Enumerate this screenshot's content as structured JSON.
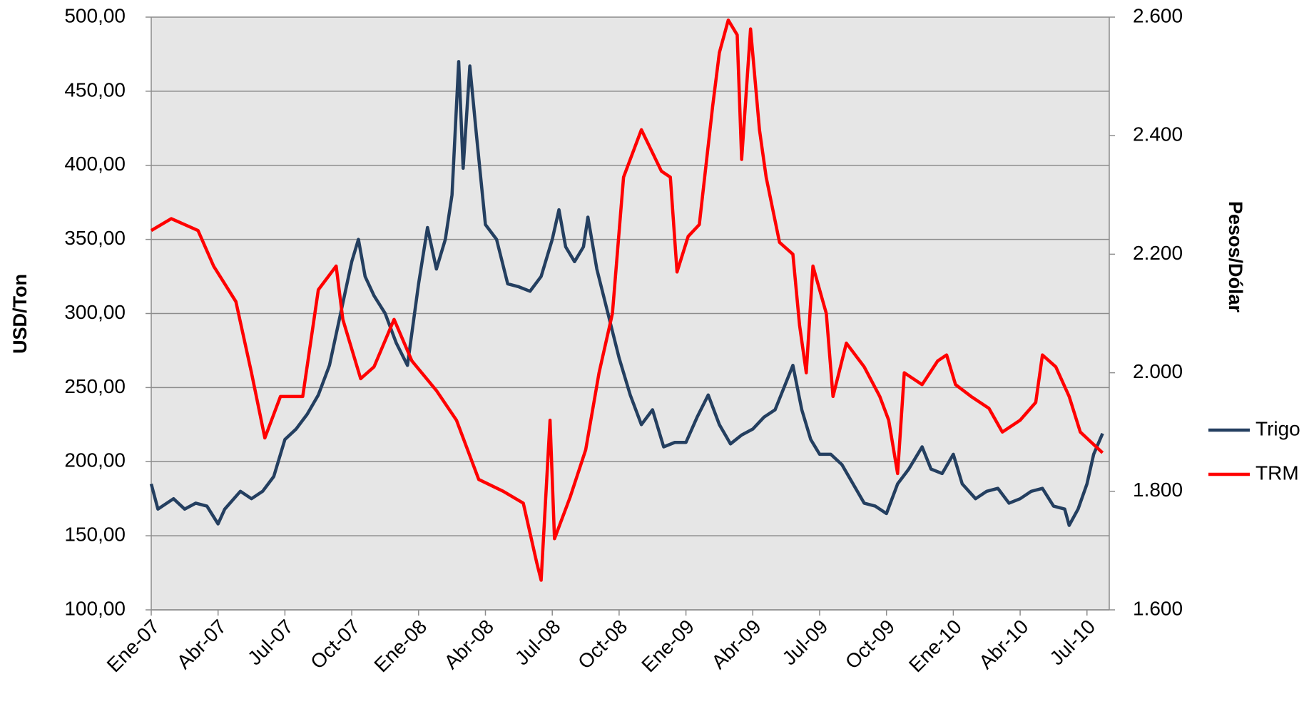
{
  "chart_data": {
    "type": "line",
    "ylabel": "USD/Ton",
    "y2label": "Pesos/Dólar",
    "xlim": [
      0,
      43
    ],
    "xticks": [
      {
        "value": 0,
        "label": "Ene-07"
      },
      {
        "value": 3,
        "label": "Abr-07"
      },
      {
        "value": 6,
        "label": "Jul-07"
      },
      {
        "value": 9,
        "label": "Oct-07"
      },
      {
        "value": 12,
        "label": "Ene-08"
      },
      {
        "value": 15,
        "label": "Abr-08"
      },
      {
        "value": 18,
        "label": "Jul-08"
      },
      {
        "value": 21,
        "label": "Oct-08"
      },
      {
        "value": 24,
        "label": "Ene-09"
      },
      {
        "value": 27,
        "label": "Abr-09"
      },
      {
        "value": 30,
        "label": "Jul-09"
      },
      {
        "value": 33,
        "label": "Oct-09"
      },
      {
        "value": 36,
        "label": "Ene-10"
      },
      {
        "value": 39,
        "label": "Abr-10"
      },
      {
        "value": 42,
        "label": "Jul-10"
      }
    ],
    "ylim": [
      100,
      500
    ],
    "yticks": [
      {
        "value": 100,
        "label": "100,00"
      },
      {
        "value": 150,
        "label": "150,00"
      },
      {
        "value": 200,
        "label": "200,00"
      },
      {
        "value": 250,
        "label": "250,00"
      },
      {
        "value": 300,
        "label": "300,00"
      },
      {
        "value": 350,
        "label": "350,00"
      },
      {
        "value": 400,
        "label": "400,00"
      },
      {
        "value": 450,
        "label": "450,00"
      },
      {
        "value": 500,
        "label": "500,00"
      }
    ],
    "y2lim": [
      1600,
      2600
    ],
    "y2ticks": [
      {
        "value": 1600,
        "label": "1.600"
      },
      {
        "value": 1800,
        "label": "1.800"
      },
      {
        "value": 2000,
        "label": "2.000"
      },
      {
        "value": 2200,
        "label": "2.200"
      },
      {
        "value": 2400,
        "label": "2.400"
      },
      {
        "value": 2600,
        "label": "2.600"
      }
    ],
    "grid": true,
    "legend": "right",
    "series": [
      {
        "name": "Trigo",
        "color": "#243f60",
        "x": [
          0,
          0.3,
          1,
          1.5,
          2,
          2.5,
          3,
          3.3,
          4,
          4.5,
          5,
          5.5,
          6,
          6.5,
          7,
          7.5,
          8,
          8.5,
          9,
          9.3,
          9.6,
          10,
          10.5,
          11,
          11.5,
          12,
          12.4,
          12.8,
          13.2,
          13.5,
          13.8,
          14,
          14.3,
          14.6,
          15,
          15.5,
          16,
          16.5,
          17,
          17.5,
          18,
          18.3,
          18.6,
          19,
          19.4,
          19.6,
          20,
          20.5,
          21,
          21.5,
          22,
          22.5,
          23,
          23.5,
          24,
          24.5,
          25,
          25.5,
          26,
          26.5,
          27,
          27.5,
          28,
          28.8,
          29.2,
          29.6,
          30,
          30.5,
          31,
          31.5,
          32,
          32.5,
          33,
          33.5,
          34,
          34.6,
          35,
          35.5,
          36,
          36.4,
          37,
          37.5,
          38,
          38.5,
          39,
          39.5,
          40,
          40.5,
          41,
          41.2,
          41.6,
          42,
          42.3,
          42.7
        ],
        "values": [
          185,
          168,
          175,
          168,
          172,
          170,
          158,
          168,
          180,
          175,
          180,
          190,
          215,
          222,
          232,
          245,
          265,
          300,
          335,
          350,
          325,
          312,
          300,
          280,
          265,
          320,
          358,
          330,
          350,
          380,
          470,
          398,
          467,
          420,
          360,
          350,
          320,
          318,
          315,
          325,
          350,
          370,
          345,
          335,
          345,
          365,
          330,
          300,
          270,
          245,
          225,
          235,
          210,
          213,
          213,
          230,
          245,
          225,
          212,
          218,
          222,
          230,
          235,
          265,
          235,
          215,
          205,
          205,
          198,
          185,
          172,
          170,
          165,
          185,
          195,
          210,
          195,
          192,
          205,
          185,
          175,
          180,
          182,
          172,
          175,
          180,
          182,
          170,
          168,
          157,
          168,
          185,
          205,
          219
        ]
      },
      {
        "name": "TRM",
        "color": "#ff0000",
        "axis": "y2",
        "x": [
          0,
          0.9,
          2.1,
          2.8,
          3.8,
          4.5,
          5.1,
          5.8,
          6.8,
          7.5,
          8.3,
          8.6,
          9.4,
          10,
          10.9,
          11.7,
          12.8,
          13.7,
          14.7,
          15.8,
          16.7,
          17.3,
          17.5,
          17.9,
          18.1,
          18.8,
          19.5,
          20.1,
          20.7,
          21.2,
          22,
          22.9,
          23.3,
          23.6,
          24.1,
          24.6,
          25.2,
          25.5,
          25.9,
          26.3,
          26.5,
          26.9,
          27.3,
          27.6,
          28.2,
          28.8,
          29.1,
          29.4,
          29.7,
          30.3,
          30.6,
          31.2,
          32,
          32.7,
          33.1,
          33.5,
          33.8,
          34.6,
          35.3,
          35.7,
          36.1,
          36.8,
          37.6,
          38.2,
          39,
          39.7,
          40,
          40.6,
          41.2,
          41.7,
          42.7
        ],
        "values": [
          2240,
          2260,
          2240,
          2180,
          2120,
          2000,
          1890,
          1960,
          1960,
          2140,
          2180,
          2090,
          1990,
          2010,
          2090,
          2020,
          1970,
          1920,
          1820,
          1800,
          1780,
          1680,
          1650,
          1920,
          1720,
          1790,
          1870,
          2000,
          2100,
          2330,
          2410,
          2340,
          2330,
          2170,
          2230,
          2250,
          2450,
          2540,
          2595,
          2570,
          2360,
          2580,
          2410,
          2330,
          2220,
          2200,
          2080,
          2000,
          2180,
          2100,
          1960,
          2050,
          2010,
          1960,
          1920,
          1830,
          2000,
          1980,
          2020,
          2030,
          1980,
          1960,
          1940,
          1900,
          1920,
          1950,
          2030,
          2010,
          1960,
          1900,
          1865
        ]
      }
    ]
  }
}
